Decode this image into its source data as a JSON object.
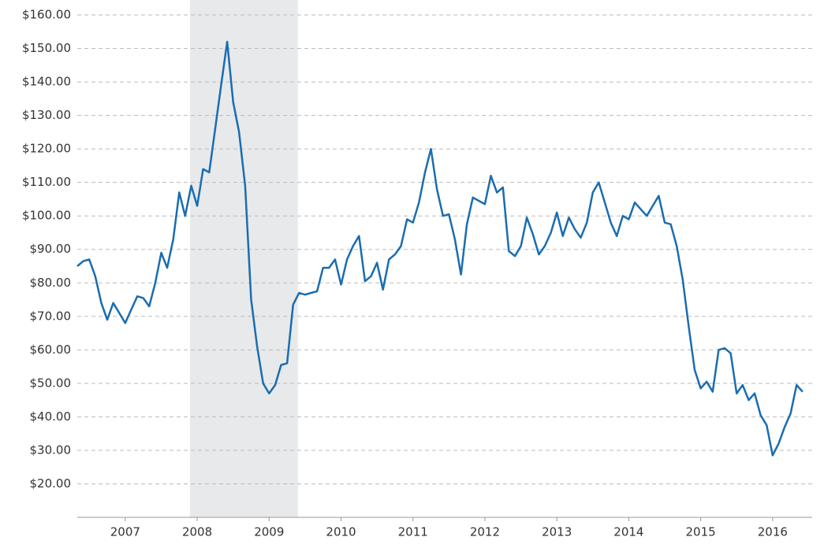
{
  "chart_data": {
    "type": "line",
    "x": [
      2006.333,
      2006.417,
      2006.5,
      2006.583,
      2006.667,
      2006.75,
      2006.833,
      2006.917,
      2007.0,
      2007.083,
      2007.167,
      2007.25,
      2007.333,
      2007.417,
      2007.5,
      2007.583,
      2007.667,
      2007.75,
      2007.833,
      2007.917,
      2008.0,
      2008.083,
      2008.167,
      2008.25,
      2008.333,
      2008.417,
      2008.5,
      2008.583,
      2008.667,
      2008.75,
      2008.833,
      2008.917,
      2009.0,
      2009.083,
      2009.167,
      2009.25,
      2009.333,
      2009.417,
      2009.5,
      2009.583,
      2009.667,
      2009.75,
      2009.833,
      2009.917,
      2010.0,
      2010.083,
      2010.167,
      2010.25,
      2010.333,
      2010.417,
      2010.5,
      2010.583,
      2010.667,
      2010.75,
      2010.833,
      2010.917,
      2011.0,
      2011.083,
      2011.167,
      2011.25,
      2011.333,
      2011.417,
      2011.5,
      2011.583,
      2011.667,
      2011.75,
      2011.833,
      2011.917,
      2012.0,
      2012.083,
      2012.167,
      2012.25,
      2012.333,
      2012.417,
      2012.5,
      2012.583,
      2012.667,
      2012.75,
      2012.833,
      2012.917,
      2013.0,
      2013.083,
      2013.167,
      2013.25,
      2013.333,
      2013.417,
      2013.5,
      2013.583,
      2013.667,
      2013.75,
      2013.833,
      2013.917,
      2014.0,
      2014.083,
      2014.167,
      2014.25,
      2014.333,
      2014.417,
      2014.5,
      2014.583,
      2014.667,
      2014.75,
      2014.833,
      2014.917,
      2015.0,
      2015.083,
      2015.167,
      2015.25,
      2015.333,
      2015.417,
      2015.5,
      2015.583,
      2015.667,
      2015.75,
      2015.833,
      2015.917,
      2016.0,
      2016.083,
      2016.167,
      2016.25,
      2016.333,
      2016.417
    ],
    "series": [
      {
        "color": "#1a6db0",
        "values": [
          85,
          86.5,
          87,
          82,
          74,
          69,
          74,
          71,
          68,
          72,
          76,
          75.5,
          73,
          80,
          89,
          84.5,
          93,
          107,
          100,
          109,
          103,
          114,
          113,
          126,
          139,
          152,
          134,
          125,
          109,
          75,
          61,
          50,
          47,
          49.5,
          55.5,
          56,
          73.5,
          77,
          76.5,
          77,
          77.5,
          84.5,
          84.5,
          87,
          79.5,
          87,
          91,
          94,
          80.5,
          82,
          86,
          78,
          87,
          88.5,
          91,
          99,
          98,
          104,
          113,
          120,
          108,
          100,
          100.5,
          93,
          82.5,
          97.5,
          105.5,
          104.5,
          103.5,
          112,
          107,
          108.5,
          89.5,
          88,
          91,
          99.5,
          94.5,
          88.5,
          91,
          95,
          101,
          94,
          99.5,
          96,
          93.5,
          98,
          107,
          110,
          104,
          98,
          94,
          100,
          99,
          104,
          102,
          100,
          103,
          106,
          98,
          97.5,
          91,
          81,
          67,
          54,
          48.5,
          50.5,
          47.5,
          60,
          60.5,
          59,
          47,
          49.5,
          45,
          47,
          40.5,
          37.5,
          28.5,
          32,
          37,
          41,
          49.5,
          47.5
        ]
      }
    ],
    "shaded_region": {
      "x": [
        2007.9,
        2009.4
      ],
      "color": "#e8e9eb"
    },
    "xlim": [
      2006.333,
      2016.55
    ],
    "xticks": [
      2007,
      2008,
      2009,
      2010,
      2011,
      2012,
      2013,
      2014,
      2015,
      2016
    ],
    "ylim": [
      10,
      160
    ],
    "yticks": [
      {
        "value": 20,
        "label": "$20.00"
      },
      {
        "value": 30,
        "label": "$30.00"
      },
      {
        "value": 40,
        "label": "$40.00"
      },
      {
        "value": 50,
        "label": "$50.00"
      },
      {
        "value": 60,
        "label": "$60.00"
      },
      {
        "value": 70,
        "label": "$70.00"
      },
      {
        "value": 80,
        "label": "$80.00"
      },
      {
        "value": 90,
        "label": "$90.00"
      },
      {
        "value": 100,
        "label": "$100.00"
      },
      {
        "value": 110,
        "label": "$110.00"
      },
      {
        "value": 120,
        "label": "$120.00"
      },
      {
        "value": 130,
        "label": "$130.00"
      },
      {
        "value": 140,
        "label": "$140.00"
      },
      {
        "value": 150,
        "label": "$150.00"
      },
      {
        "value": 160,
        "label": "$160.00"
      }
    ],
    "grid": true
  }
}
